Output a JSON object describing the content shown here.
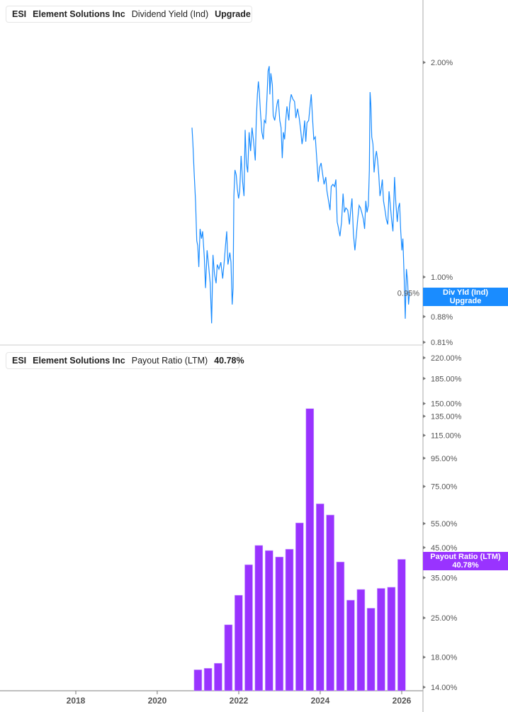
{
  "colors": {
    "yield_line": "#1a8cff",
    "payout_bar": "#9933ff",
    "axis": "#999999"
  },
  "top_legend": {
    "ticker": "ESI",
    "company": "Element Solutions Inc",
    "metric": "Dividend Yield (Ind)",
    "value": "Upgrade"
  },
  "top_tag": {
    "line1": "Div Yld (Ind)",
    "line2": "Upgrade"
  },
  "bottom_legend": {
    "ticker": "ESI",
    "company": "Element Solutions Inc",
    "metric": "Payout Ratio (LTM)",
    "value": "40.78%"
  },
  "bottom_tag": {
    "line1": "Payout Ratio (LTM)",
    "line2": "40.78%"
  },
  "chart_data": [
    {
      "type": "line",
      "scale": "log",
      "ylabel": "",
      "title": "",
      "yticks": [
        "2.00%",
        "1.00%",
        "0.95%",
        "0.88%",
        "0.81%"
      ],
      "ytick_values": [
        2.0,
        1.0,
        0.95,
        0.88,
        0.81
      ],
      "points": [
        [
          "2020-11-08",
          1.62
        ],
        [
          "2020-11-16",
          1.536
        ],
        [
          "2020-11-27",
          1.402
        ],
        [
          "2020-12-10",
          1.27
        ],
        [
          "2020-12-20",
          1.124
        ],
        [
          "2020-12-29",
          1.107
        ],
        [
          "2021-01-08",
          1.033
        ],
        [
          "2021-01-19",
          1.168
        ],
        [
          "2021-02-01",
          1.132
        ],
        [
          "2021-02-11",
          1.159
        ],
        [
          "2021-02-26",
          1.065
        ],
        [
          "2021-03-09",
          0.965
        ],
        [
          "2021-03-23",
          1.09
        ],
        [
          "2021-04-05",
          1.041
        ],
        [
          "2021-04-20",
          0.98
        ],
        [
          "2021-05-03",
          0.861
        ],
        [
          "2021-05-15",
          1.074
        ],
        [
          "2021-05-28",
          1.01
        ],
        [
          "2021-06-12",
          0.98
        ],
        [
          "2021-06-22",
          1.041
        ],
        [
          "2021-07-07",
          1.026
        ],
        [
          "2021-07-24",
          1.049
        ],
        [
          "2021-08-10",
          0.995
        ],
        [
          "2021-08-25",
          1.057
        ],
        [
          "2021-09-04",
          1.107
        ],
        [
          "2021-09-15",
          1.159
        ],
        [
          "2021-09-26",
          1.041
        ],
        [
          "2021-10-13",
          1.082
        ],
        [
          "2021-10-23",
          1.049
        ],
        [
          "2021-11-03",
          0.915
        ],
        [
          "2021-11-11",
          0.965
        ],
        [
          "2021-11-18",
          1.299
        ],
        [
          "2021-11-28",
          1.413
        ],
        [
          "2021-12-09",
          1.391
        ],
        [
          "2021-12-19",
          1.329
        ],
        [
          "2021-12-30",
          1.289
        ],
        [
          "2022-01-09",
          1.319
        ],
        [
          "2022-01-22",
          1.479
        ],
        [
          "2022-02-04",
          1.36
        ],
        [
          "2022-02-17",
          1.299
        ],
        [
          "2022-02-27",
          1.608
        ],
        [
          "2022-03-10",
          1.445
        ],
        [
          "2022-03-22",
          1.402
        ],
        [
          "2022-04-04",
          1.596
        ],
        [
          "2022-04-17",
          1.502
        ],
        [
          "2022-04-30",
          1.62
        ],
        [
          "2022-05-12",
          1.56
        ],
        [
          "2022-05-29",
          1.457
        ],
        [
          "2022-06-07",
          1.658
        ],
        [
          "2022-06-17",
          1.804
        ],
        [
          "2022-06-26",
          1.881
        ],
        [
          "2022-07-04",
          1.817
        ],
        [
          "2022-07-15",
          1.697
        ],
        [
          "2022-07-27",
          1.596
        ],
        [
          "2022-08-09",
          1.56
        ],
        [
          "2022-08-18",
          1.658
        ],
        [
          "2022-08-30",
          1.646
        ],
        [
          "2022-09-10",
          1.776
        ],
        [
          "2022-09-21",
          1.946
        ],
        [
          "2022-10-01",
          1.976
        ],
        [
          "2022-10-07",
          1.804
        ],
        [
          "2022-10-16",
          1.931
        ],
        [
          "2022-10-29",
          1.86
        ],
        [
          "2022-11-06",
          1.684
        ],
        [
          "2022-11-19",
          1.658
        ],
        [
          "2022-11-29",
          1.697
        ],
        [
          "2022-12-10",
          1.749
        ],
        [
          "2022-12-21",
          1.776
        ],
        [
          "2023-01-04",
          1.658
        ],
        [
          "2023-01-15",
          1.62
        ],
        [
          "2023-01-26",
          1.468
        ],
        [
          "2023-02-05",
          1.596
        ],
        [
          "2023-02-16",
          1.56
        ],
        [
          "2023-02-26",
          1.658
        ],
        [
          "2023-03-09",
          1.735
        ],
        [
          "2023-03-26",
          1.658
        ],
        [
          "2023-04-03",
          1.749
        ],
        [
          "2023-04-16",
          1.804
        ],
        [
          "2023-05-01",
          1.776
        ],
        [
          "2023-05-16",
          1.763
        ],
        [
          "2023-05-28",
          1.671
        ],
        [
          "2023-06-12",
          1.722
        ],
        [
          "2023-06-27",
          1.671
        ],
        [
          "2023-07-10",
          1.608
        ],
        [
          "2023-07-22",
          1.536
        ],
        [
          "2023-08-04",
          1.584
        ],
        [
          "2023-08-15",
          1.658
        ],
        [
          "2023-08-25",
          1.548
        ],
        [
          "2023-09-05",
          1.646
        ],
        [
          "2023-09-20",
          1.658
        ],
        [
          "2023-10-02",
          1.735
        ],
        [
          "2023-10-13",
          1.804
        ],
        [
          "2023-10-24",
          1.671
        ],
        [
          "2023-11-05",
          1.56
        ],
        [
          "2023-11-18",
          1.572
        ],
        [
          "2023-12-05",
          1.434
        ],
        [
          "2023-12-15",
          1.36
        ],
        [
          "2023-12-26",
          1.424
        ],
        [
          "2024-01-09",
          1.445
        ],
        [
          "2024-01-24",
          1.391
        ],
        [
          "2024-02-05",
          1.349
        ],
        [
          "2024-02-20",
          1.381
        ],
        [
          "2024-03-02",
          1.319
        ],
        [
          "2024-03-19",
          1.27
        ],
        [
          "2024-03-29",
          1.241
        ],
        [
          "2024-04-09",
          1.339
        ],
        [
          "2024-04-24",
          1.349
        ],
        [
          "2024-05-09",
          1.339
        ],
        [
          "2024-05-21",
          1.37
        ],
        [
          "2024-06-01",
          1.195
        ],
        [
          "2024-06-11",
          1.176
        ],
        [
          "2024-06-26",
          1.141
        ],
        [
          "2024-07-11",
          1.195
        ],
        [
          "2024-07-24",
          1.309
        ],
        [
          "2024-08-05",
          1.232
        ],
        [
          "2024-08-18",
          1.25
        ],
        [
          "2024-09-04",
          1.241
        ],
        [
          "2024-09-19",
          1.185
        ],
        [
          "2024-09-29",
          1.232
        ],
        [
          "2024-10-12",
          1.289
        ],
        [
          "2024-10-25",
          1.15
        ],
        [
          "2024-11-07",
          1.09
        ],
        [
          "2024-11-19",
          1.141
        ],
        [
          "2024-12-02",
          1.204
        ],
        [
          "2024-12-15",
          1.26
        ],
        [
          "2024-12-27",
          1.25
        ],
        [
          "2025-01-08",
          1.232
        ],
        [
          "2025-01-23",
          1.204
        ],
        [
          "2025-02-02",
          1.168
        ],
        [
          "2025-02-13",
          1.279
        ],
        [
          "2025-02-24",
          1.232
        ],
        [
          "2025-03-08",
          1.26
        ],
        [
          "2025-03-17",
          1.413
        ],
        [
          "2025-03-23",
          1.817
        ],
        [
          "2025-03-30",
          1.749
        ],
        [
          "2025-04-07",
          1.572
        ],
        [
          "2025-04-18",
          1.536
        ],
        [
          "2025-04-28",
          1.402
        ],
        [
          "2025-05-09",
          1.468
        ],
        [
          "2025-05-19",
          1.502
        ],
        [
          "2025-05-30",
          1.457
        ],
        [
          "2025-06-09",
          1.391
        ],
        [
          "2025-06-20",
          1.299
        ],
        [
          "2025-07-01",
          1.329
        ],
        [
          "2025-07-11",
          1.37
        ],
        [
          "2025-07-22",
          1.279
        ],
        [
          "2025-08-04",
          1.241
        ],
        [
          "2025-08-16",
          1.204
        ],
        [
          "2025-08-29",
          1.185
        ],
        [
          "2025-09-09",
          1.319
        ],
        [
          "2025-09-19",
          1.27
        ],
        [
          "2025-10-02",
          1.204
        ],
        [
          "2025-10-14",
          1.159
        ],
        [
          "2025-10-29",
          1.381
        ],
        [
          "2025-11-09",
          1.27
        ],
        [
          "2025-11-22",
          1.195
        ],
        [
          "2025-12-02",
          1.25
        ],
        [
          "2025-12-13",
          1.27
        ],
        [
          "2025-12-23",
          1.159
        ],
        [
          "2026-01-03",
          1.09
        ],
        [
          "2026-01-11",
          1.132
        ],
        [
          "2026-01-24",
          0.987
        ],
        [
          "2026-02-02",
          0.874
        ],
        [
          "2026-02-12",
          1.026
        ],
        [
          "2026-02-23",
          0.987
        ],
        [
          "2026-03-03",
          0.915
        ],
        [
          "2026-03-12",
          0.95
        ]
      ]
    },
    {
      "type": "bar",
      "scale": "log",
      "ylabel": "",
      "title": "",
      "yticks": [
        "220.00%",
        "185.00%",
        "150.00%",
        "135.00%",
        "115.00%",
        "95.00%",
        "75.00%",
        "55.00%",
        "45.00%",
        "35.00%",
        "25.00%",
        "18.00%",
        "14.00%"
      ],
      "ytick_values": [
        220,
        185,
        150,
        135,
        115,
        95,
        75,
        55,
        45,
        35,
        25,
        18,
        14
      ],
      "categories": [
        "2020-12-31",
        "2021-03-31",
        "2021-06-30",
        "2021-09-30",
        "2021-12-31",
        "2022-03-31",
        "2022-06-30",
        "2022-09-30",
        "2022-12-31",
        "2023-03-31",
        "2023-06-30",
        "2023-09-30",
        "2023-12-31",
        "2024-03-31",
        "2024-06-30",
        "2024-09-30",
        "2024-12-31",
        "2025-03-31",
        "2025-06-30",
        "2025-09-30",
        "2025-12-31"
      ],
      "values": [
        16.2,
        16.4,
        17.1,
        23.6,
        30.2,
        39.0,
        45.8,
        43.9,
        41.6,
        44.4,
        55.3,
        143.8,
        64.9,
        59.1,
        39.9,
        29.0,
        31.7,
        27.1,
        32.0,
        32.3,
        40.78
      ]
    }
  ],
  "x_axis": {
    "ticks": [
      "2018",
      "2020",
      "2022",
      "2024",
      "2026"
    ]
  }
}
